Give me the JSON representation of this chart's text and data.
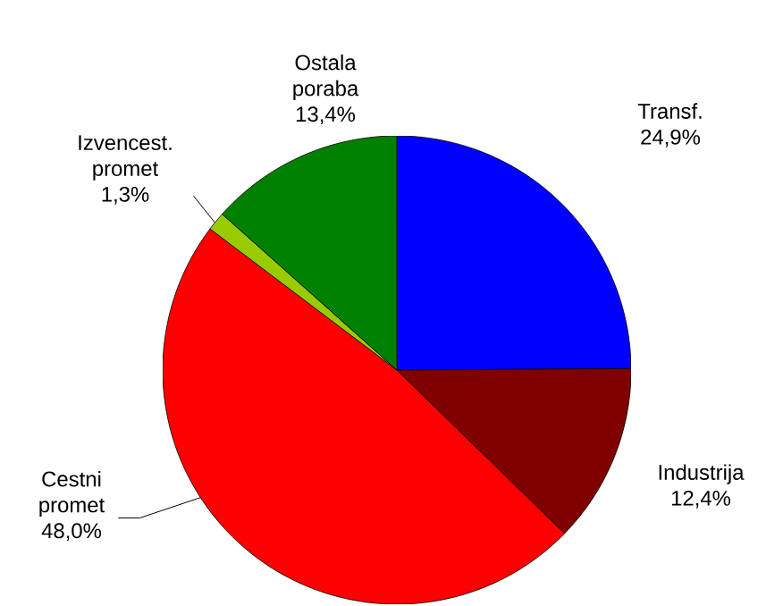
{
  "chart_data": {
    "type": "pie",
    "categories": [
      "Transf.",
      "Industrija",
      "Cestni promet",
      "Izvencest. promet",
      "Ostala poraba"
    ],
    "values": [
      24.9,
      12.4,
      48.0,
      1.3,
      13.4
    ],
    "value_labels": [
      "24,9%",
      "12,4%",
      "48,0%",
      "1,3%",
      "13,4%"
    ],
    "colors": [
      "#0000ff",
      "#800000",
      "#ff0000",
      "#99cc00",
      "#008000"
    ],
    "legend": false
  }
}
